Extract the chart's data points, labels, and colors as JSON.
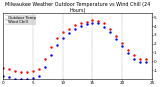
{
  "title": "Milwaukee Weather Outdoor Temperature vs Wind Chill (24 Hours)",
  "title_fontsize": 3.5,
  "bg_color": "#ffffff",
  "plot_bg": "#ffffff",
  "xlim": [
    0,
    25
  ],
  "ylim": [
    -20,
    55
  ],
  "grid_positions": [
    5,
    10,
    15,
    20,
    25
  ],
  "hours": [
    0,
    1,
    2,
    3,
    4,
    5,
    6,
    7,
    8,
    9,
    10,
    11,
    12,
    13,
    14,
    15,
    16,
    17,
    18,
    19,
    20,
    21,
    22,
    23,
    24
  ],
  "temp": [
    -8,
    -9,
    -11,
    -12,
    -12,
    -11,
    -9,
    3,
    16,
    27,
    33,
    37,
    41,
    43,
    45,
    47,
    46,
    43,
    37,
    29,
    21,
    13,
    7,
    3,
    2
  ],
  "wind_chill": [
    -17,
    -18,
    -20,
    -20,
    -20,
    -19,
    -17,
    -7,
    7,
    19,
    27,
    32,
    37,
    40,
    42,
    44,
    43,
    39,
    33,
    25,
    17,
    9,
    3,
    -1,
    -1
  ],
  "temp_color": "#ff0000",
  "wind_chill_color": "#0000ff",
  "dot_size": 1.5,
  "legend_labels": [
    "Outdoor Temp",
    "Wind Chill"
  ],
  "legend_colors": [
    "#ff0000",
    "#0000ff"
  ],
  "legend_fontsize": 2.8,
  "tick_fontsize": 3.0,
  "ytick_labels": [
    "5",
    "4",
    "3",
    "2",
    "1",
    "0",
    "-1"
  ],
  "ytick_vals": [
    50,
    40,
    30,
    20,
    10,
    0,
    -10
  ],
  "ytick_display": [
    "5",
    "4",
    "3",
    "2",
    "1",
    "0",
    "-1"
  ],
  "xtick_vals": [
    0,
    5,
    10,
    15,
    20,
    25
  ],
  "xtick_labels": [
    "0",
    "5",
    "10",
    "15",
    "20",
    "25"
  ]
}
